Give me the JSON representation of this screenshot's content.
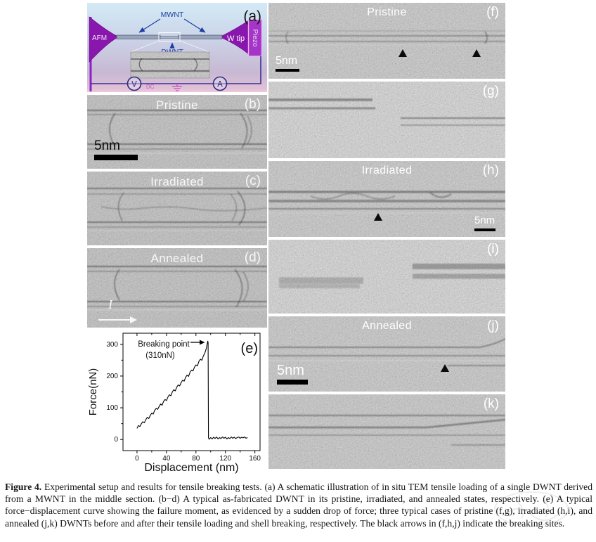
{
  "figure_caption": {
    "label": "Figure 4.",
    "text": " Experimental setup and results for tensile breaking tests. (a) A schematic illustration of in situ TEM tensile loading of a single DWNT derived from a MWNT in the middle section. (b−d) A typical as-fabricated DWNT in its pristine, irradiated, and annealed states, respectively. (e) A typical force−displacement curve showing the failure moment, as evidenced by a sudden drop of force; three typical cases of pristine (f,g), irradiated (h,i), and annealed (j,k) DWNTs before and after their tensile loading and shell breaking, respectively. The black arrows in (f,h,j) indicate the breaking sites."
  },
  "schematic": {
    "panel_label": "(a)",
    "mwnt_label": "MWNT",
    "dwnt_label": "DWNT",
    "afm_label": "AFM",
    "wtip_label": "W tip",
    "piezo_label": "Piezo",
    "voltmeter_label": "V",
    "ammeter_label": "A",
    "dc_label": "DC",
    "colors": {
      "tip_purple": "#8916ad",
      "piezo_fill": "#a435c8",
      "circuit_wire": "#3a3090",
      "nanotube_text": "#1c3f9e",
      "dc_pink": "#c457ce",
      "background_top": "#d3eaf6",
      "background_bottom": "#c8b8d4",
      "tem_gray": "#8e8e8e"
    }
  },
  "panels": {
    "b": {
      "label": "(b)",
      "title": "Pristine",
      "scalebar": "5nm"
    },
    "c": {
      "label": "(c)",
      "title": "Irradiated"
    },
    "d": {
      "label": "(d)",
      "title": "Annealed",
      "current_label": "I"
    },
    "f": {
      "label": "(f)",
      "title": "Pristine",
      "scalebar": "5nm"
    },
    "g": {
      "label": "(g)"
    },
    "h": {
      "label": "(h)",
      "title": "Irradiated",
      "scalebar": "5nm"
    },
    "i": {
      "label": "(i)"
    },
    "j": {
      "label": "(j)",
      "title": "Annealed",
      "scalebar": "5nm"
    },
    "k": {
      "label": "(k)"
    }
  },
  "chart_data": {
    "type": "line",
    "panel_label": "(e)",
    "xlabel": "Displacement (nm)",
    "ylabel": "Force(nN)",
    "xticks": [
      0,
      40,
      80,
      120,
      160
    ],
    "xminor": [
      20,
      60,
      100,
      140
    ],
    "yticks": [
      0,
      100,
      200,
      300
    ],
    "yminor": [
      50,
      150,
      250
    ],
    "xlim": [
      -19,
      167
    ],
    "ylim": [
      -35,
      335
    ],
    "grid": false,
    "breaking_point_nN": 310,
    "breaking_displacement_nm": 96,
    "annotation_line1": "Breaking point",
    "annotation_line2": "(310nN)",
    "series": [
      {
        "name": "force_vs_displacement",
        "points": [
          [
            0,
            35
          ],
          [
            2,
            44
          ],
          [
            4,
            41
          ],
          [
            6,
            50
          ],
          [
            8,
            56
          ],
          [
            10,
            53
          ],
          [
            12,
            63
          ],
          [
            14,
            70
          ],
          [
            16,
            66
          ],
          [
            18,
            76
          ],
          [
            20,
            83
          ],
          [
            22,
            80
          ],
          [
            24,
            92
          ],
          [
            26,
            98
          ],
          [
            28,
            95
          ],
          [
            30,
            104
          ],
          [
            32,
            112
          ],
          [
            34,
            108
          ],
          [
            36,
            120
          ],
          [
            38,
            126
          ],
          [
            40,
            123
          ],
          [
            42,
            134
          ],
          [
            44,
            141
          ],
          [
            46,
            138
          ],
          [
            48,
            150
          ],
          [
            50,
            157
          ],
          [
            52,
            153
          ],
          [
            54,
            165
          ],
          [
            56,
            172
          ],
          [
            58,
            169
          ],
          [
            60,
            180
          ],
          [
            62,
            187
          ],
          [
            64,
            184
          ],
          [
            66,
            196
          ],
          [
            68,
            203
          ],
          [
            70,
            199
          ],
          [
            72,
            212
          ],
          [
            74,
            219
          ],
          [
            76,
            216
          ],
          [
            78,
            228
          ],
          [
            80,
            235
          ],
          [
            82,
            232
          ],
          [
            84,
            246
          ],
          [
            86,
            253
          ],
          [
            88,
            250
          ],
          [
            90,
            263
          ],
          [
            92,
            272
          ],
          [
            94,
            287
          ],
          [
            95,
            298
          ],
          [
            96,
            310
          ],
          [
            96.5,
            306
          ],
          [
            97,
            5
          ],
          [
            98,
            1
          ],
          [
            100,
            6
          ],
          [
            102,
            2
          ],
          [
            104,
            7
          ],
          [
            106,
            3
          ],
          [
            108,
            8
          ],
          [
            110,
            2
          ],
          [
            112,
            6
          ],
          [
            114,
            3
          ],
          [
            116,
            8
          ],
          [
            118,
            4
          ],
          [
            120,
            7
          ],
          [
            122,
            2
          ],
          [
            124,
            6
          ],
          [
            126,
            3
          ],
          [
            128,
            8
          ],
          [
            130,
            4
          ],
          [
            132,
            7
          ],
          [
            134,
            3
          ],
          [
            136,
            6
          ],
          [
            138,
            8
          ],
          [
            140,
            4
          ],
          [
            142,
            7
          ],
          [
            144,
            5
          ],
          [
            146,
            8
          ],
          [
            148,
            4
          ],
          [
            150,
            6
          ]
        ]
      }
    ]
  }
}
